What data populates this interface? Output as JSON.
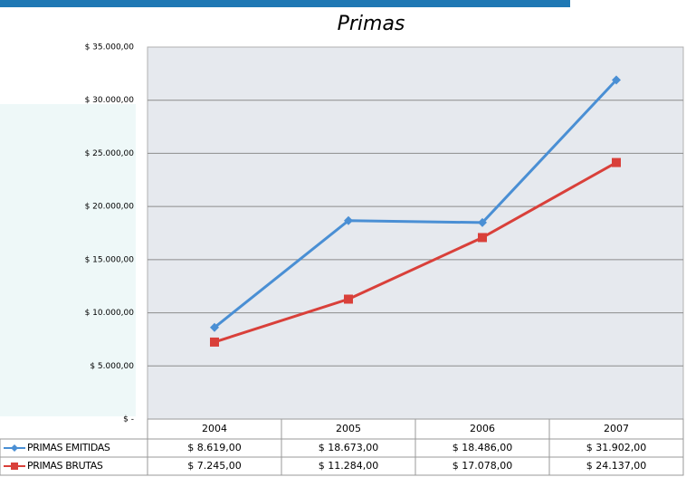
{
  "chart_data": {
    "type": "line",
    "title": "Primas",
    "categories": [
      "2004",
      "2005",
      "2006",
      "2007"
    ],
    "series": [
      {
        "name": "PRIMAS EMITIDAS",
        "color": "#4a8fd4",
        "marker": "diamond",
        "values": [
          8619,
          18673,
          18486,
          31902
        ],
        "value_labels": [
          "$ 8.619,00",
          "$ 18.673,00",
          "$ 18.486,00",
          "$ 31.902,00"
        ]
      },
      {
        "name": "PRIMAS BRUTAS",
        "color": "#d9403a",
        "marker": "square",
        "values": [
          7245,
          11284,
          17078,
          24137
        ],
        "value_labels": [
          "$ 7.245,00",
          "$ 11.284,00",
          "$ 17.078,00",
          "$ 24.137,00"
        ]
      }
    ],
    "ylim": [
      0,
      35000
    ],
    "yticks": [
      {
        "value": 0,
        "label": "$ -"
      },
      {
        "value": 5000,
        "label": "$ 5.000,00"
      },
      {
        "value": 10000,
        "label": "$ 10.000,00"
      },
      {
        "value": 15000,
        "label": "$ 15.000,00"
      },
      {
        "value": 20000,
        "label": "$ 20.000,00"
      },
      {
        "value": 25000,
        "label": "$ 25.000,00"
      },
      {
        "value": 30000,
        "label": "$ 30.000,00"
      },
      {
        "value": 35000,
        "label": "$ 35.000,00"
      }
    ],
    "grid": true,
    "legend": "table"
  }
}
